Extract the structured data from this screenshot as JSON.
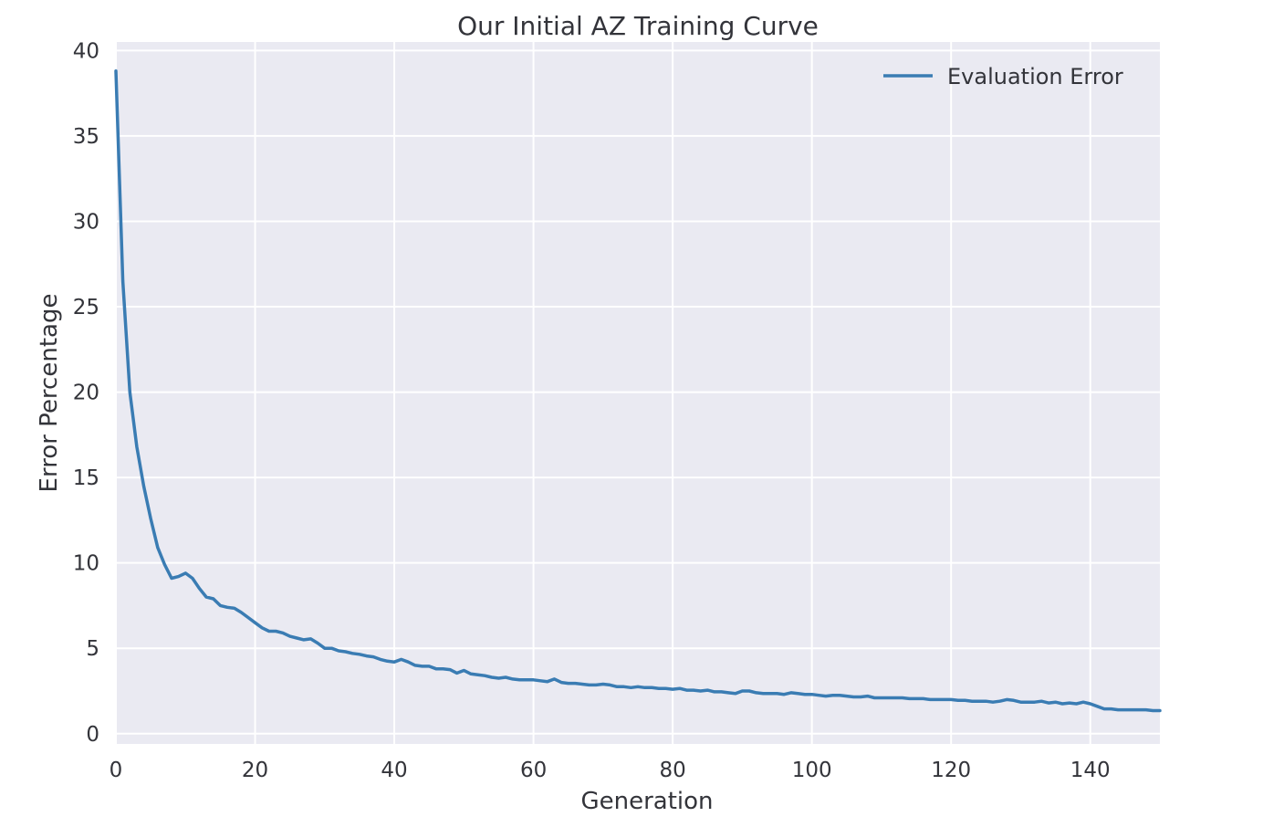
{
  "chart_data": {
    "type": "line",
    "title": "Our Initial AZ Training Curve",
    "xlabel": "Generation",
    "ylabel": "Error Percentage",
    "xlim": [
      0,
      150
    ],
    "ylim": [
      -0.6,
      40.5
    ],
    "xticks": [
      0,
      20,
      40,
      60,
      80,
      100,
      120,
      140
    ],
    "yticks": [
      0,
      5,
      10,
      15,
      20,
      25,
      30,
      35,
      40
    ],
    "grid": true,
    "legend_position": "top-right",
    "colors": {
      "background": "#eaeaf2",
      "grid": "#ffffff",
      "line": "#3a7cb3",
      "text": "#33343a"
    },
    "series": [
      {
        "name": "Evaluation Error",
        "x": [
          0,
          1,
          2,
          3,
          4,
          5,
          6,
          7,
          8,
          9,
          10,
          11,
          12,
          13,
          14,
          15,
          16,
          17,
          18,
          19,
          20,
          21,
          22,
          23,
          24,
          25,
          26,
          27,
          28,
          29,
          30,
          31,
          32,
          33,
          34,
          35,
          36,
          37,
          38,
          39,
          40,
          41,
          42,
          43,
          44,
          45,
          46,
          47,
          48,
          49,
          50,
          51,
          52,
          53,
          54,
          55,
          56,
          57,
          58,
          59,
          60,
          61,
          62,
          63,
          64,
          65,
          66,
          67,
          68,
          69,
          70,
          71,
          72,
          73,
          74,
          75,
          76,
          77,
          78,
          79,
          80,
          81,
          82,
          83,
          84,
          85,
          86,
          87,
          88,
          89,
          90,
          91,
          92,
          93,
          94,
          95,
          96,
          97,
          98,
          99,
          100,
          101,
          102,
          103,
          104,
          105,
          106,
          107,
          108,
          109,
          110,
          111,
          112,
          113,
          114,
          115,
          116,
          117,
          118,
          119,
          120,
          121,
          122,
          123,
          124,
          125,
          126,
          127,
          128,
          129,
          130,
          131,
          132,
          133,
          134,
          135,
          136,
          137,
          138,
          139,
          140,
          141,
          142,
          143,
          144,
          145,
          146,
          147,
          148,
          149,
          150
        ],
        "y": [
          38.8,
          26.5,
          20.0,
          16.8,
          14.5,
          12.6,
          10.9,
          9.9,
          9.1,
          9.2,
          9.4,
          9.1,
          8.5,
          8.0,
          7.9,
          7.5,
          7.4,
          7.35,
          7.1,
          6.8,
          6.5,
          6.2,
          6.0,
          6.0,
          5.9,
          5.7,
          5.6,
          5.5,
          5.55,
          5.3,
          5.0,
          5.0,
          4.85,
          4.8,
          4.7,
          4.65,
          4.55,
          4.5,
          4.35,
          4.25,
          4.2,
          4.35,
          4.2,
          4.0,
          3.95,
          3.95,
          3.8,
          3.8,
          3.75,
          3.55,
          3.7,
          3.5,
          3.45,
          3.4,
          3.3,
          3.25,
          3.3,
          3.2,
          3.15,
          3.15,
          3.15,
          3.1,
          3.05,
          3.2,
          3.0,
          2.95,
          2.95,
          2.9,
          2.85,
          2.85,
          2.9,
          2.85,
          2.75,
          2.75,
          2.7,
          2.75,
          2.7,
          2.7,
          2.65,
          2.65,
          2.6,
          2.65,
          2.55,
          2.55,
          2.5,
          2.55,
          2.45,
          2.45,
          2.4,
          2.35,
          2.5,
          2.5,
          2.4,
          2.35,
          2.35,
          2.35,
          2.3,
          2.4,
          2.35,
          2.3,
          2.3,
          2.25,
          2.2,
          2.25,
          2.25,
          2.2,
          2.15,
          2.15,
          2.2,
          2.1,
          2.1,
          2.1,
          2.1,
          2.1,
          2.05,
          2.05,
          2.05,
          2.0,
          2.0,
          2.0,
          2.0,
          1.95,
          1.95,
          1.9,
          1.9,
          1.9,
          1.85,
          1.9,
          2.0,
          1.95,
          1.85,
          1.85,
          1.85,
          1.9,
          1.8,
          1.85,
          1.75,
          1.8,
          1.75,
          1.85,
          1.75,
          1.6,
          1.45,
          1.45,
          1.4,
          1.4,
          1.4,
          1.4,
          1.4,
          1.35,
          1.35
        ]
      }
    ]
  }
}
